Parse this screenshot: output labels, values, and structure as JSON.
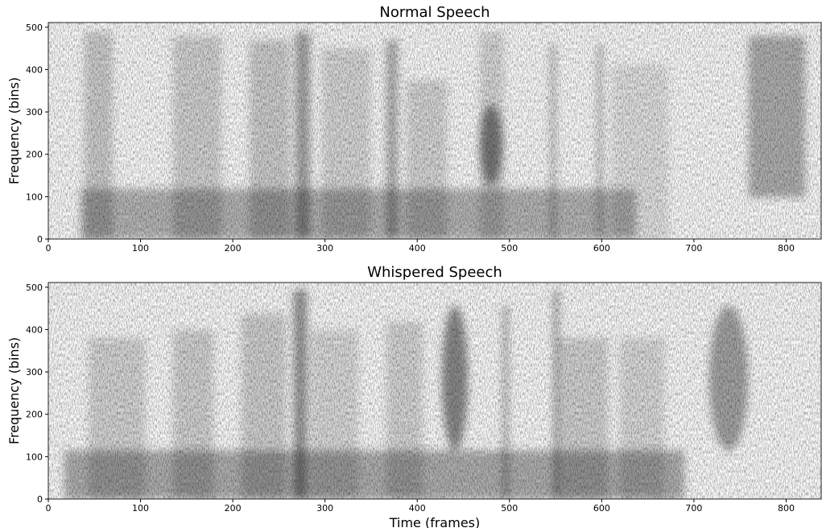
{
  "chart_data": [
    {
      "type": "spectrogram",
      "title": "Normal Speech",
      "ylabel": "Frequency (bins)",
      "colormap": "Greys",
      "xlim": [
        0,
        838
      ],
      "ylim": [
        0,
        511
      ],
      "xticks": [
        0,
        100,
        200,
        300,
        400,
        500,
        600,
        700,
        800
      ],
      "yticks": [
        0,
        100,
        200,
        300,
        400,
        500
      ]
    },
    {
      "type": "spectrogram",
      "title": "Whispered Speech",
      "ylabel": "Frequency (bins)",
      "xlabel": "Time (frames)",
      "colormap": "Greys",
      "xlim": [
        0,
        838
      ],
      "ylim": [
        0,
        511
      ],
      "xticks": [
        0,
        100,
        200,
        300,
        400,
        500,
        600,
        700,
        800
      ],
      "yticks": [
        0,
        100,
        200,
        300,
        400,
        500
      ]
    }
  ]
}
